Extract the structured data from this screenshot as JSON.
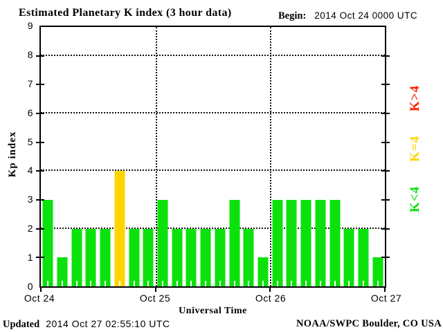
{
  "title": "Estimated Planetary K index (3 hour data)",
  "begin": {
    "label": "Begin:",
    "value": "2014 Oct 24 0000 UTC"
  },
  "footer": {
    "updated_label": "Updated",
    "updated_value": "2014 Oct 27 02:55:10 UTC",
    "source": "NOAA/SWPC Boulder, CO USA"
  },
  "legend": {
    "items": [
      {
        "label": "K>4",
        "color": "#ff2200"
      },
      {
        "label": "K=4",
        "color": "#ffd400"
      },
      {
        "label": "K<4",
        "color": "#0be20b"
      }
    ]
  },
  "chart_data": {
    "type": "bar",
    "title": "Estimated Planetary K index (3 hour data)",
    "xlabel": "Universal Time",
    "ylabel": "Kp index",
    "ylim": [
      0,
      9
    ],
    "y_ticks": [
      0,
      1,
      2,
      3,
      4,
      5,
      6,
      7,
      8,
      9
    ],
    "h_gridlines_at": [
      2,
      4,
      6,
      8
    ],
    "x_tick_labels": [
      "Oct 24",
      "Oct 25",
      "Oct 26",
      "Oct 27"
    ],
    "v_gridlines_at_day": [
      1,
      2
    ],
    "hours_per_bar": 3,
    "bars_per_day": 8,
    "start": "2014 Oct 24 0000 UTC",
    "values": [
      3,
      1,
      2,
      2,
      2,
      4,
      2,
      2,
      3,
      2,
      2,
      2,
      2,
      3,
      2,
      1,
      3,
      3,
      3,
      3,
      3,
      2,
      2,
      1
    ],
    "bar_colors": {
      "k_below_4": "#0be20b",
      "k_equal_4": "#ffd400",
      "k_above_4": "#ff2200"
    },
    "grid": true,
    "legend_position": "right"
  }
}
